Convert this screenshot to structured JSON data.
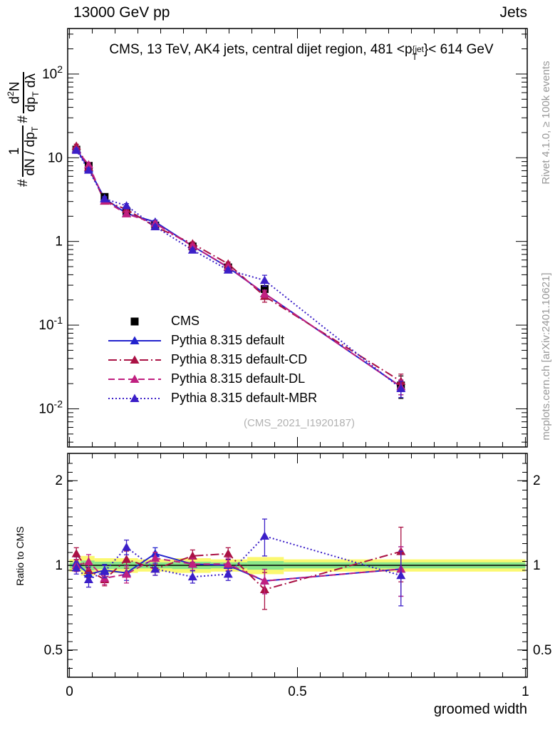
{
  "header": {
    "left": "13000 GeV pp",
    "right": "Jets"
  },
  "side_notes": {
    "top": "Rivet 4.1.0, ≥ 100k events",
    "bottom": "mcplots.cern.ch [arXiv:2401.10621]"
  },
  "watermark": "(CMS_2021_I1920187)",
  "chart_data": {
    "type": "scatter",
    "title_parts": [
      {
        "t": "CMS, 13 TeV, AK4 jets, central dijet region, 481 <p"
      },
      {
        "stack": {
          "sup": "{jet",
          "sub": "T"
        }
      },
      {
        "t": "}< 614 GeV"
      }
    ],
    "xlabel": "groomed width",
    "ylabel_parts": [
      {
        "t": "# "
      },
      {
        "frac": {
          "num": [
            {
              "t": "1"
            }
          ],
          "den": [
            {
              "t": "dN / dp"
            },
            {
              "sub": "T"
            }
          ]
        }
      },
      {
        "t": " # "
      },
      {
        "frac": {
          "num": [
            {
              "t": "d"
            },
            {
              "sup": "2"
            },
            {
              "t": "N"
            }
          ],
          "den": [
            {
              "t": "dp"
            },
            {
              "sub": "T"
            },
            {
              "t": " dλ"
            }
          ]
        }
      }
    ],
    "ratio_label": "Ratio to CMS",
    "x": [
      0.015,
      0.042,
      0.077,
      0.125,
      0.188,
      0.27,
      0.348,
      0.428,
      0.727
    ],
    "series": [
      {
        "name": "CMS",
        "color": "#000000",
        "marker": "square",
        "line": "none",
        "values": [
          12.5,
          8.0,
          3.4,
          2.3,
          1.55,
          0.87,
          0.49,
          0.27,
          0.019
        ],
        "err_frac": [
          0.05,
          0.05,
          0.05,
          0.05,
          0.05,
          0.06,
          0.07,
          0.09,
          0.3
        ]
      },
      {
        "name": "Pythia 8.315 default",
        "color": "#2323cd",
        "marker": "triangle",
        "line": "solid",
        "values": [
          12.8,
          7.44,
          3.26,
          2.16,
          1.71,
          0.88,
          0.49,
          0.238,
          0.0184
        ],
        "ratio": [
          1.02,
          0.93,
          0.96,
          0.94,
          1.1,
          1.01,
          1.0,
          0.88,
          0.97
        ],
        "err_frac": [
          0.05,
          0.06,
          0.05,
          0.06,
          0.05,
          0.05,
          0.05,
          0.1,
          0.2
        ]
      },
      {
        "name": "Pythia 8.315 default-CD",
        "color": "#aa1144",
        "marker": "triangle",
        "line": "dashdot",
        "values": [
          13.8,
          7.68,
          3.03,
          2.42,
          1.5,
          0.94,
          0.54,
          0.221,
          0.0213
        ],
        "ratio": [
          1.1,
          0.96,
          0.89,
          1.05,
          0.97,
          1.08,
          1.1,
          0.82,
          1.12
        ],
        "err_frac": [
          0.05,
          0.06,
          0.05,
          0.07,
          0.05,
          0.05,
          0.05,
          0.15,
          0.22
        ]
      },
      {
        "name": "Pythia 8.315 default-DL",
        "color": "#c02080",
        "marker": "triangle",
        "line": "dashed",
        "values": [
          12.5,
          8.24,
          3.06,
          2.14,
          1.64,
          0.88,
          0.495,
          0.238,
          0.0184
        ],
        "ratio": [
          1.0,
          1.03,
          0.9,
          0.93,
          1.06,
          1.01,
          1.01,
          0.88,
          0.97
        ],
        "err_frac": [
          0.05,
          0.06,
          0.05,
          0.07,
          0.05,
          0.05,
          0.05,
          0.1,
          0.2
        ]
      },
      {
        "name": "Pythia 8.315 default-MBR",
        "color": "#3b1fc8",
        "marker": "triangle",
        "line": "dotted",
        "values": [
          12.3,
          7.12,
          3.23,
          2.67,
          1.5,
          0.79,
          0.456,
          0.343,
          0.0175
        ],
        "ratio": [
          0.98,
          0.89,
          0.95,
          1.16,
          0.97,
          0.91,
          0.93,
          1.27,
          0.92
        ],
        "err_frac": [
          0.05,
          0.06,
          0.05,
          0.06,
          0.05,
          0.05,
          0.05,
          0.15,
          0.22
        ]
      }
    ],
    "main_axis": {
      "log": true,
      "range": [
        0.0035,
        350
      ],
      "tick_labels": [
        {
          "base": "10",
          "exp": "2",
          "v": 100
        },
        {
          "base": "10",
          "v": 10
        },
        {
          "base": "1",
          "v": 1
        },
        {
          "base": "10",
          "exp": "-1",
          "v": 0.1
        },
        {
          "base": "10",
          "exp": "-2",
          "v": 0.01
        }
      ]
    },
    "ratio_axis": {
      "log": true,
      "range": [
        0.4,
        2.5
      ],
      "tick_labels": [
        {
          "base": "2",
          "v": 2
        },
        {
          "base": "1",
          "v": 1
        },
        {
          "base": "0.5",
          "v": 0.5
        }
      ]
    },
    "x_axis": {
      "range": [
        -0.004,
        1.004
      ],
      "minor_step": 0.05,
      "tick_labels": [
        {
          "base": "0",
          "v": 0
        },
        {
          "base": "0.5",
          "v": 0.5
        },
        {
          "base": "1",
          "v": 1
        }
      ]
    },
    "bands": {
      "edges": [
        0,
        0.025,
        0.055,
        0.095,
        0.15,
        0.225,
        0.31,
        0.39,
        0.47,
        1.0
      ],
      "yellow_half": [
        0.05,
        0.08,
        0.06,
        0.06,
        0.05,
        0.06,
        0.05,
        0.07,
        0.05
      ],
      "green_half": [
        0.025,
        0.04,
        0.03,
        0.03,
        0.025,
        0.03,
        0.025,
        0.035,
        0.025
      ],
      "yellow_color": "#fbf870",
      "green_color": "#8ae68a"
    }
  }
}
